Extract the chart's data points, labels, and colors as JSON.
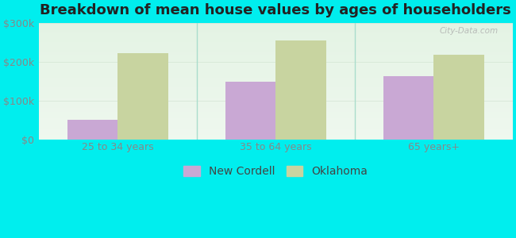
{
  "title": "Breakdown of mean house values by ages of householders",
  "categories": [
    "25 to 34 years",
    "35 to 64 years",
    "65 years+"
  ],
  "new_cordell": [
    50000,
    148000,
    163000
  ],
  "oklahoma": [
    222000,
    255000,
    218000
  ],
  "ylim": [
    0,
    300000
  ],
  "yticks": [
    0,
    100000,
    200000,
    300000
  ],
  "ytick_labels": [
    "$0",
    "$100k",
    "$200k",
    "$300k"
  ],
  "bar_color_cordell": "#c9a8d4",
  "bar_color_oklahoma": "#c8d4a0",
  "background_color": "#00eeee",
  "legend_cordell": "New Cordell",
  "legend_oklahoma": "Oklahoma",
  "bar_width": 0.32,
  "title_fontsize": 13,
  "tick_fontsize": 9,
  "legend_fontsize": 10,
  "separator_color": "#aaddcc",
  "tick_color": "#888888"
}
